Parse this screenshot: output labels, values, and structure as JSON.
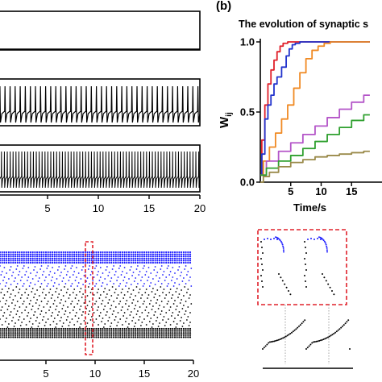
{
  "panel_b_label": "(b)",
  "chart_data": [
    {
      "type": "line",
      "panel": "top-left",
      "subplots": 3,
      "x_ticks": [
        5,
        10,
        15,
        20
      ],
      "xlim": [
        0,
        20
      ],
      "traces": [
        {
          "pattern": "flat"
        },
        {
          "pattern": "regular-spikes",
          "spikes_in_view": 40
        },
        {
          "pattern": "dense-spikes",
          "spikes_in_view": 70
        }
      ]
    },
    {
      "type": "line",
      "panel": "b",
      "title": "The evolution of synaptic s",
      "xlabel": "Time/s",
      "ylabel": "W",
      "ylabel_subscript": "ij",
      "xlim": [
        0,
        20
      ],
      "ylim": [
        0,
        1.0
      ],
      "x_ticks": [
        5,
        10,
        15
      ],
      "y_ticks": [
        "0.0",
        "0.5",
        "1.0"
      ],
      "series": [
        {
          "color": "#e0202a",
          "x": [
            0,
            0.5,
            1,
            1.5,
            2,
            2.5,
            3,
            3.5,
            4,
            5,
            6,
            8,
            10,
            14,
            18
          ],
          "y": [
            0.05,
            0.3,
            0.55,
            0.7,
            0.8,
            0.87,
            0.93,
            0.97,
            0.99,
            1.0,
            1.0,
            1.0,
            1.0,
            1.0,
            1.0
          ]
        },
        {
          "color": "#2233cc",
          "x": [
            0,
            0.5,
            1,
            1.5,
            2,
            2.5,
            3,
            4,
            4.5,
            5,
            5.5,
            6,
            7,
            8,
            10,
            14,
            18
          ],
          "y": [
            0.05,
            0.2,
            0.45,
            0.55,
            0.62,
            0.7,
            0.75,
            0.82,
            0.9,
            0.95,
            0.98,
            0.99,
            1.0,
            1.0,
            1.0,
            1.0,
            1.0
          ]
        },
        {
          "color": "#f08a24",
          "x": [
            0,
            1,
            2,
            3,
            4,
            5,
            6,
            7,
            8,
            9,
            10,
            11,
            12,
            14,
            18
          ],
          "y": [
            0.05,
            0.15,
            0.25,
            0.35,
            0.45,
            0.55,
            0.67,
            0.78,
            0.88,
            0.94,
            0.97,
            0.99,
            1.0,
            1.0,
            1.0
          ]
        },
        {
          "color": "#b455c8",
          "x": [
            0,
            2,
            4,
            6,
            8,
            10,
            12,
            14,
            16,
            18
          ],
          "y": [
            0.05,
            0.15,
            0.22,
            0.28,
            0.34,
            0.4,
            0.46,
            0.52,
            0.57,
            0.62
          ]
        },
        {
          "color": "#2fa02f",
          "x": [
            0,
            2,
            4,
            6,
            8,
            10,
            12,
            14,
            16,
            18
          ],
          "y": [
            0.05,
            0.1,
            0.15,
            0.19,
            0.24,
            0.29,
            0.34,
            0.39,
            0.44,
            0.48
          ]
        },
        {
          "color": "#9a8a4a",
          "x": [
            0,
            1,
            2,
            4,
            6,
            8,
            10,
            12,
            14,
            16,
            18
          ],
          "y": [
            0.0,
            0.04,
            0.07,
            0.11,
            0.14,
            0.16,
            0.18,
            0.19,
            0.2,
            0.21,
            0.22
          ]
        }
      ]
    },
    {
      "type": "scatter",
      "panel": "bottom-left",
      "x_ticks": [
        5,
        10,
        15,
        20
      ],
      "xlim": [
        0,
        20
      ],
      "colors": [
        "#1a1aff",
        "#000000"
      ],
      "highlight_x": 10,
      "highlight_color": "#e0202a"
    },
    {
      "type": "scatter",
      "panel": "bottom-right",
      "description_colors": [
        "#1a1aff",
        "#000000"
      ],
      "highlight_color": "#e0202a"
    }
  ]
}
